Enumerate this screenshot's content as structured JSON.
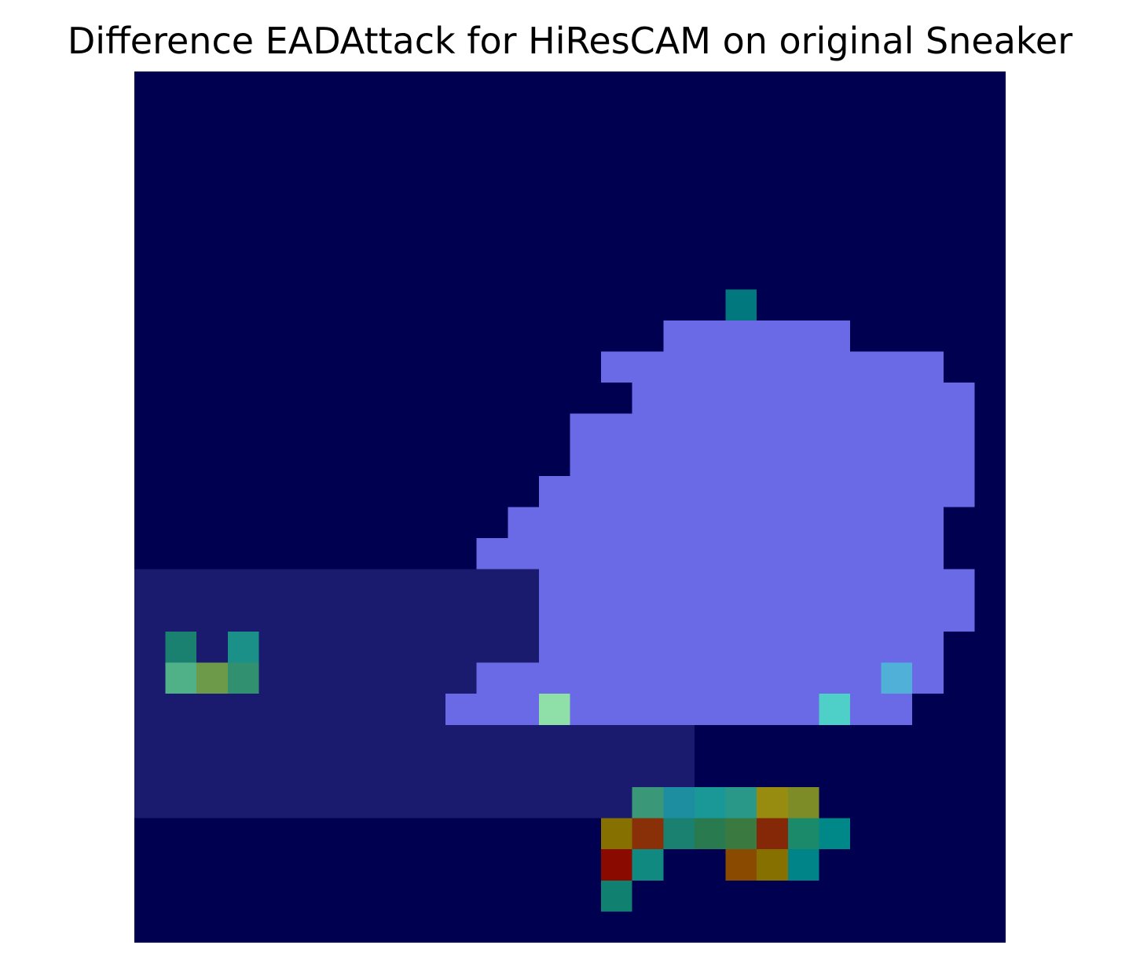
{
  "chart_data": {
    "type": "heatmap",
    "title": "Difference EADAttack for HiResCAM on original Sneaker",
    "xlabel": "",
    "ylabel": "",
    "axes_visible": false,
    "grid": false,
    "colormap": "jet-overlay-on-image",
    "rows": 28,
    "cols": 28,
    "region_colors": {
      "background": "#000050",
      "faint_structure": "#1a1a6e",
      "shoe_glow": "#6a6ae6",
      "hotspot_teal": "#1a9a8a",
      "hotspot_olive": "#8a7a00",
      "hotspot_red": "#8a1000"
    },
    "notable_cells": [
      {
        "row": 25,
        "col": 15,
        "color": "#8a0a00"
      },
      {
        "row": 24,
        "col": 16,
        "color": "#8a3008"
      },
      {
        "row": 24,
        "col": 20,
        "color": "#842808"
      },
      {
        "row": 24,
        "col": 15,
        "color": "#857000"
      },
      {
        "row": 25,
        "col": 20,
        "color": "#857000"
      },
      {
        "row": 25,
        "col": 19,
        "color": "#8a4a00"
      },
      {
        "row": 23,
        "col": 20,
        "color": "#988c10"
      },
      {
        "row": 23,
        "col": 21,
        "color": "#7e8c28"
      },
      {
        "row": 23,
        "col": 17,
        "color": "#1c8ea0"
      },
      {
        "row": 23,
        "col": 18,
        "color": "#1a9898"
      },
      {
        "row": 23,
        "col": 19,
        "color": "#2a9888"
      },
      {
        "row": 23,
        "col": 16,
        "color": "#3a9878"
      },
      {
        "row": 24,
        "col": 17,
        "color": "#1a8070"
      },
      {
        "row": 24,
        "col": 18,
        "color": "#2a7a50"
      },
      {
        "row": 24,
        "col": 19,
        "color": "#3a7a40"
      },
      {
        "row": 24,
        "col": 21,
        "color": "#1a8a6a"
      },
      {
        "row": 24,
        "col": 22,
        "color": "#008888"
      },
      {
        "row": 25,
        "col": 16,
        "color": "#108a80"
      },
      {
        "row": 25,
        "col": 21,
        "color": "#008488"
      },
      {
        "row": 26,
        "col": 15,
        "color": "#108070"
      },
      {
        "row": 20,
        "col": 13,
        "color": "#8ee0a8"
      },
      {
        "row": 20,
        "col": 22,
        "color": "#4ed0c8"
      },
      {
        "row": 19,
        "col": 1,
        "color": "#50b088"
      },
      {
        "row": 19,
        "col": 2,
        "color": "#6c9a48"
      },
      {
        "row": 19,
        "col": 3,
        "color": "#309070"
      },
      {
        "row": 18,
        "col": 1,
        "color": "#1a8070"
      },
      {
        "row": 18,
        "col": 3,
        "color": "#1a9088"
      },
      {
        "row": 19,
        "col": 24,
        "color": "#50b0d8"
      },
      {
        "row": 7,
        "col": 19,
        "color": "#00787e"
      }
    ]
  }
}
